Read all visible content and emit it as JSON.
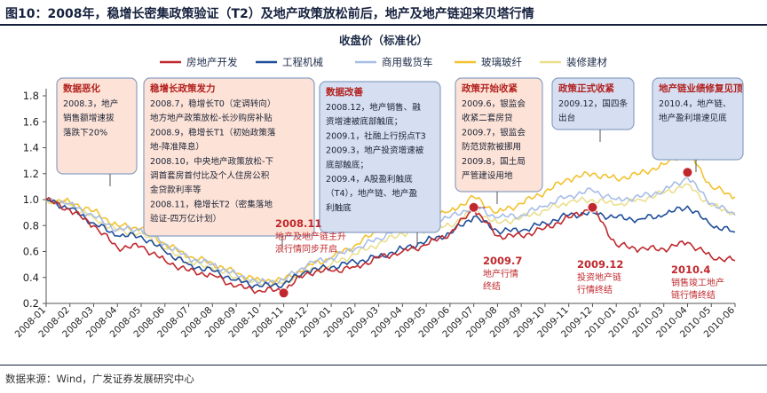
{
  "figure": {
    "title": "图10：2008年，稳增长密集政策验证（T2）及地产政策放松前后，地产及地产链迎来贝塔行情",
    "source": "数据来源：Wind，广发证券发展研究中心"
  },
  "chart_data": {
    "type": "line",
    "title": "收盘价（标准化）",
    "xlabel": "",
    "ylabel": "",
    "ylim": [
      0.2,
      1.8
    ],
    "yticks": [
      "0.2",
      "0.4",
      "0.6",
      "0.8",
      "1.0",
      "1.2",
      "1.4",
      "1.6",
      "1.8"
    ],
    "grid": false,
    "legend": "top",
    "x": [
      "2008-01",
      "2008-02",
      "2008-03",
      "2008-04",
      "2008-05",
      "2008-06",
      "2008-07",
      "2008-08",
      "2008-09",
      "2008-10",
      "2008-11",
      "2008-12",
      "2009-01",
      "2009-02",
      "2009-03",
      "2009-04",
      "2009-05",
      "2009-06",
      "2009-07",
      "2009-08",
      "2009-09",
      "2009-10",
      "2009-11",
      "2009-12",
      "2010-01",
      "2010-02",
      "2010-03",
      "2010-04",
      "2010-05",
      "2010-06"
    ],
    "series": [
      {
        "name": "房地产开发",
        "color": "#c0282d",
        "values": [
          1.0,
          0.92,
          0.8,
          0.63,
          0.64,
          0.53,
          0.45,
          0.42,
          0.33,
          0.3,
          0.3,
          0.44,
          0.45,
          0.48,
          0.55,
          0.6,
          0.65,
          0.74,
          0.93,
          0.72,
          0.72,
          0.78,
          0.86,
          0.94,
          0.65,
          0.62,
          0.62,
          0.67,
          0.56,
          0.53
        ]
      },
      {
        "name": "工程机械",
        "color": "#1f4e9a",
        "values": [
          1.0,
          0.93,
          0.82,
          0.72,
          0.72,
          0.6,
          0.5,
          0.45,
          0.38,
          0.33,
          0.35,
          0.45,
          0.48,
          0.52,
          0.56,
          0.62,
          0.68,
          0.74,
          0.87,
          0.76,
          0.76,
          0.82,
          0.88,
          0.9,
          0.86,
          0.85,
          0.88,
          0.95,
          0.8,
          0.75
        ]
      },
      {
        "name": "商用载货车",
        "color": "#a8bde6",
        "values": [
          1.0,
          0.97,
          0.87,
          0.77,
          0.77,
          0.66,
          0.55,
          0.5,
          0.42,
          0.36,
          0.38,
          0.5,
          0.55,
          0.62,
          0.7,
          0.8,
          0.84,
          0.86,
          0.95,
          0.86,
          0.88,
          0.95,
          1.03,
          1.07,
          1.0,
          1.02,
          1.07,
          1.17,
          0.97,
          0.88
        ]
      },
      {
        "name": "玻璃玻纤",
        "color": "#f2c230",
        "values": [
          1.0,
          0.98,
          0.91,
          0.8,
          0.78,
          0.66,
          0.56,
          0.51,
          0.43,
          0.38,
          0.38,
          0.49,
          0.55,
          0.65,
          0.76,
          0.86,
          0.86,
          0.91,
          1.02,
          0.9,
          0.97,
          1.06,
          1.16,
          1.2,
          1.16,
          1.2,
          1.27,
          1.38,
          1.1,
          1.02
        ]
      },
      {
        "name": "装修建材",
        "color": "#eadf8e",
        "values": [
          1.0,
          0.96,
          0.86,
          0.76,
          0.74,
          0.62,
          0.52,
          0.47,
          0.4,
          0.35,
          0.36,
          0.45,
          0.5,
          0.58,
          0.66,
          0.74,
          0.76,
          0.8,
          0.92,
          0.82,
          0.86,
          0.92,
          0.98,
          1.0,
          0.96,
          1.0,
          1.05,
          1.12,
          0.95,
          0.9
        ]
      }
    ],
    "markers": [
      {
        "x": "2008-11",
        "y": 0.28,
        "color": "#c0282d"
      },
      {
        "x": "2009-07",
        "y": 0.94,
        "color": "#c0282d"
      },
      {
        "x": "2009-12",
        "y": 0.94,
        "color": "#c0282d"
      },
      {
        "x": "2010-04",
        "y": 1.21,
        "color": "#c0282d"
      }
    ],
    "event_labels": [
      {
        "lines": [
          "2008.11",
          "地产及地产链主升",
          "浪行情同步开启"
        ]
      },
      {
        "lines": [
          "2009.7",
          "地产行情",
          "终结"
        ]
      },
      {
        "lines": [
          "2009.12",
          "投资地产链",
          "行情终结"
        ]
      },
      {
        "lines": [
          "2010.4",
          "销售竣工地产",
          "链行情终结"
        ]
      }
    ],
    "annotations": [
      {
        "title": "数据恶化",
        "fill": "#fde3d7",
        "lines": [
          "2008.3，地产",
          "销售额增速拔",
          "落跌下20%"
        ]
      },
      {
        "title": "稳增长政策发力",
        "fill": "#fde3d7",
        "lines": [
          "2008.7，稳增长T0（定调转向）",
          "地方地产政策放松-长沙购房补贴",
          "2008.9，稳增长T1（初始政策落",
          "地-降准降息）",
          "2008.10，中央地产政策放松-下",
          "调首套房首付比及个人住房公积",
          "金贷款利率等",
          "2008.11，稳增长T2（密集落地",
          "验证-四万亿计划）"
        ]
      },
      {
        "title": "数据改善",
        "fill": "#d5dff1",
        "lines": [
          "2008.12，地产销售、融",
          "资增速被底部触底；",
          "2009.1，社融上行拐点T3",
          "2009.3，地产投资增速被",
          "底部触底；",
          "2009.4，A股盈利触底",
          "（T4），地产链、地产盈",
          "利触底"
        ]
      },
      {
        "title": "政策开始收紧",
        "fill": "#fde3d7",
        "lines": [
          "2009.6，银监会",
          "收紧二套房贷",
          "2009.7，银监会",
          "防范贷款被挪用",
          "2009.8，国土局",
          "严管建设用地"
        ]
      },
      {
        "title": "政策正式收紧",
        "fill": "#d5dff1",
        "lines": [
          "2009.12，国四条",
          "出台"
        ]
      },
      {
        "title": "地产链业绩修复见顶",
        "fill": "#d5dff1",
        "lines": [
          "2010.4，地产链、",
          "地产盈利增速见底"
        ]
      }
    ]
  }
}
